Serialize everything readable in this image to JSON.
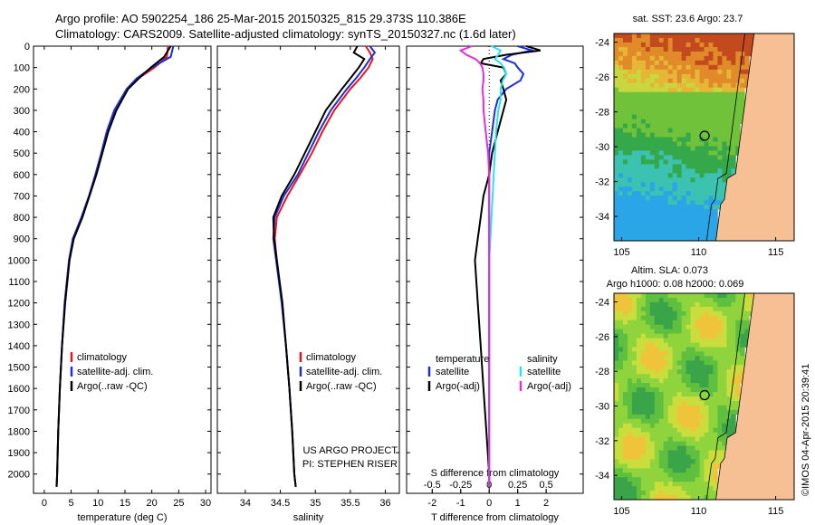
{
  "header": {
    "line1": "Argo profile: AO 5902254_186 25-Mar-2015 20150325_815 29.373S 110.386E",
    "line2": "Climatology: CARS2009. Satellite-adjusted climatology: synTS_20150327.nc (1.6d later)"
  },
  "credit": "©IMOS 04-Apr-2015 20:39:41",
  "colors": {
    "climatology": "#e8141e",
    "satellite": "#1b2fd9",
    "argo": "#000000",
    "cyan": "#29e3f0",
    "magenta": "#e62ed6",
    "land": "#f7bf94"
  },
  "chart_data": [
    {
      "type": "line",
      "xlabel": "temperature (deg C)",
      "ylabel": "",
      "xlim": [
        -2,
        31
      ],
      "ylim": [
        2090,
        0
      ],
      "x_ticks": [
        "0",
        "5",
        "10",
        "15",
        "20",
        "25",
        "30"
      ],
      "y_ticks": [
        "0",
        "100",
        "200",
        "300",
        "400",
        "500",
        "600",
        "700",
        "800",
        "900",
        "1000",
        "1100",
        "1200",
        "1300",
        "1400",
        "1500",
        "1600",
        "1700",
        "1800",
        "1900",
        "2000"
      ],
      "depth": [
        0,
        50,
        100,
        150,
        200,
        300,
        400,
        500,
        600,
        700,
        800,
        900,
        1000,
        1200,
        1400,
        1600,
        1800,
        2000,
        2060
      ],
      "series": [
        {
          "name": "climatology",
          "color": "#e8141e",
          "values": [
            23.0,
            22.8,
            20.5,
            17.5,
            15.5,
            13.2,
            11.8,
            10.7,
            9.6,
            8.4,
            7.0,
            5.4,
            4.6,
            3.8,
            3.3,
            2.9,
            2.6,
            2.4,
            2.3
          ]
        },
        {
          "name": "satellite-adj. clim.",
          "color": "#1b2fd9",
          "values": [
            24.0,
            23.5,
            20.0,
            17.2,
            15.3,
            13.0,
            11.6,
            10.6,
            9.5,
            8.3,
            6.9,
            5.3,
            4.6,
            3.8,
            3.3,
            2.9,
            2.6,
            2.4,
            2.3
          ]
        },
        {
          "name": "Argo(..raw -QC)",
          "color": "#000000",
          "values": [
            23.5,
            22.3,
            19.8,
            17.6,
            15.6,
            13.4,
            11.9,
            10.8,
            9.7,
            8.4,
            7.1,
            5.5,
            4.7,
            3.9,
            3.3,
            2.9,
            2.6,
            2.4,
            2.3
          ]
        }
      ]
    },
    {
      "type": "line",
      "xlabel": "salinity",
      "xlim": [
        33.6,
        36.2
      ],
      "ylim": [
        2090,
        0
      ],
      "x_ticks": [
        "34",
        "34.5",
        "35",
        "35.5",
        "36"
      ],
      "depth": [
        0,
        30,
        60,
        100,
        150,
        200,
        300,
        400,
        500,
        600,
        700,
        800,
        900,
        1000,
        1200,
        1400,
        1600,
        1800,
        2000,
        2060
      ],
      "series": [
        {
          "name": "climatology",
          "color": "#e8141e",
          "values": [
            35.72,
            35.78,
            35.82,
            35.76,
            35.64,
            35.5,
            35.27,
            35.1,
            34.95,
            34.78,
            34.6,
            34.45,
            34.42,
            34.45,
            34.52,
            34.58,
            34.63,
            34.67,
            34.7,
            34.72
          ]
        },
        {
          "name": "satellite-adj. clim.",
          "color": "#1b2fd9",
          "values": [
            35.78,
            35.85,
            35.78,
            35.7,
            35.58,
            35.45,
            35.22,
            35.05,
            34.9,
            34.75,
            34.55,
            34.42,
            34.4,
            34.44,
            34.52,
            34.58,
            34.63,
            34.67,
            34.7,
            34.72
          ]
        },
        {
          "name": "Argo(..raw -QC)",
          "color": "#000000",
          "values": [
            35.6,
            35.55,
            35.7,
            35.62,
            35.5,
            35.38,
            35.15,
            35.0,
            34.85,
            34.7,
            34.52,
            34.4,
            34.41,
            34.45,
            34.53,
            34.58,
            34.63,
            34.67,
            34.7,
            34.72
          ]
        }
      ],
      "annotation": [
        "US ARGO PROJECT",
        "PI: STEPHEN RISER"
      ]
    },
    {
      "type": "line",
      "xlabel": "T difference from climatology",
      "secondary_label": "S difference from climatology",
      "t_xlim": [
        -2.9,
        3.3
      ],
      "t_ticks": [
        "-2",
        "-1",
        "0",
        "1",
        "2"
      ],
      "s_ticks": [
        "-0.5",
        "-0.25",
        "0",
        "0.25",
        "0.5"
      ],
      "ylim": [
        2090,
        0
      ],
      "legend_left": {
        "title": "temperature",
        "items": [
          {
            "name": "satellite",
            "color": "#1b2fd9"
          },
          {
            "name": "Argo(-adj)",
            "color": "#000000"
          }
        ]
      },
      "legend_right": {
        "title": "salinity",
        "items": [
          {
            "name": "satellite",
            "color": "#29e3f0"
          },
          {
            "name": "Argo(-adj)",
            "color": "#e62ed6"
          }
        ]
      },
      "depth": [
        0,
        20,
        40,
        60,
        80,
        100,
        130,
        160,
        200,
        250,
        300,
        400,
        500,
        600,
        700,
        800,
        900,
        1000,
        1200,
        1400,
        1600,
        1800,
        2000,
        2060
      ],
      "series": [
        {
          "name": "temperature satellite",
          "color": "#1b2fd9",
          "values": [
            1.0,
            1.5,
            0.8,
            0.5,
            0.9,
            1.0,
            1.2,
            1.1,
            0.6,
            0.3,
            0.2,
            0.1,
            0.0,
            0.0,
            0.0,
            0.0,
            0.0,
            0.0,
            0.0,
            0.0,
            0.0,
            0.0,
            0.0,
            0.0
          ]
        },
        {
          "name": "temperature Argo(-adj)",
          "color": "#000000",
          "values": [
            1.3,
            1.8,
            0.6,
            -0.2,
            -0.3,
            0.5,
            0.6,
            0.4,
            0.5,
            0.6,
            0.5,
            0.3,
            0.1,
            0.0,
            -0.2,
            -0.3,
            -0.4,
            -0.5,
            -0.4,
            -0.3,
            -0.2,
            -0.1,
            0.0,
            0.0
          ]
        },
        {
          "name": "salinity satellite",
          "color": "#29e3f0",
          "values": [
            0.02,
            0.1,
            0.08,
            0.05,
            0.1,
            0.13,
            0.15,
            0.12,
            0.1,
            0.1,
            0.08,
            0.06,
            0.05,
            0.04,
            0.03,
            0.02,
            0.01,
            0.0,
            0.0,
            0.0,
            0.0,
            0.0,
            0.0,
            0.0
          ]
        },
        {
          "name": "salinity Argo(-adj)",
          "color": "#e62ed6",
          "values": [
            -0.15,
            -0.25,
            -0.2,
            -0.12,
            -0.08,
            -0.06,
            -0.05,
            -0.05,
            -0.06,
            -0.05,
            -0.05,
            -0.03,
            -0.01,
            0.0,
            0.0,
            0.0,
            0.0,
            0.0,
            0.0,
            0.0,
            0.0,
            0.0,
            0.0,
            0.0
          ]
        }
      ]
    },
    {
      "type": "heatmap",
      "title": "sat. SST: 23.6  Argo: 23.7",
      "x_ticks": [
        "105",
        "110",
        "115"
      ],
      "y_ticks": [
        "-24",
        "-26",
        "-28",
        "-30",
        "-32",
        "-34"
      ],
      "xlim": [
        104.5,
        116.2
      ],
      "ylim": [
        -35.4,
        -23.5
      ],
      "argo_position": {
        "lon": 110.386,
        "lat": -29.373
      }
    },
    {
      "type": "heatmap",
      "title": "Altim. SLA: 0.073",
      "subtitle": "Argo h1000: 0.08 h2000: 0.069",
      "x_ticks": [
        "105",
        "110",
        "115"
      ],
      "y_ticks": [
        "-24",
        "-26",
        "-28",
        "-30",
        "-32",
        "-34"
      ],
      "xlim": [
        104.5,
        116.2
      ],
      "ylim": [
        -35.4,
        -23.5
      ],
      "argo_position": {
        "lon": 110.386,
        "lat": -29.373
      }
    }
  ],
  "legend_profiles": [
    {
      "name": "climatology",
      "color": "#e8141e"
    },
    {
      "name": "satellite-adj. clim.",
      "color": "#1b2fd9"
    },
    {
      "name": "Argo(..raw -QC)",
      "color": "#000000"
    }
  ]
}
